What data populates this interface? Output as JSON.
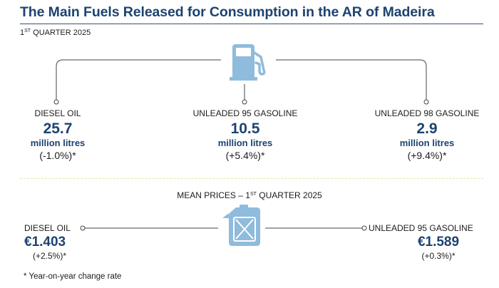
{
  "title": "The Main Fuels Released for Consumption in the AR of Madeira",
  "subtitle": {
    "prefix": "1",
    "sup": "ST",
    "rest": " QUARTER 2025"
  },
  "consumption": [
    {
      "name": "DIESEL OIL",
      "value": "25.7",
      "unit": "million litres",
      "change": "(-1.0%)*"
    },
    {
      "name": "UNLEADED 95 GASOLINE",
      "value": "10.5",
      "unit": "million litres",
      "change": "(+5.4%)*"
    },
    {
      "name": "UNLEADED 98 GASOLINE",
      "value": "2.9",
      "unit": "million litres",
      "change": "(+9.4%)*"
    }
  ],
  "prices_title": {
    "prefix": "MEAN PRICES – 1",
    "sup": "ST",
    "rest": " QUARTER 2025"
  },
  "prices": [
    {
      "name": "DIESEL OIL",
      "value": "€1.403",
      "change": "(+2.5%)*"
    },
    {
      "name": "UNLEADED 95 GASOLINE",
      "value": "€1.589",
      "change": "(+0.3%)*"
    }
  ],
  "footnote": "* Year-on-year change rate",
  "icons": [
    "fuel-pump-icon",
    "jerrycan-icon"
  ],
  "colors": {
    "heading": "#1d4370",
    "icon": "#8fbbdc",
    "line": "#444444",
    "divider": "#e4e4a6"
  }
}
